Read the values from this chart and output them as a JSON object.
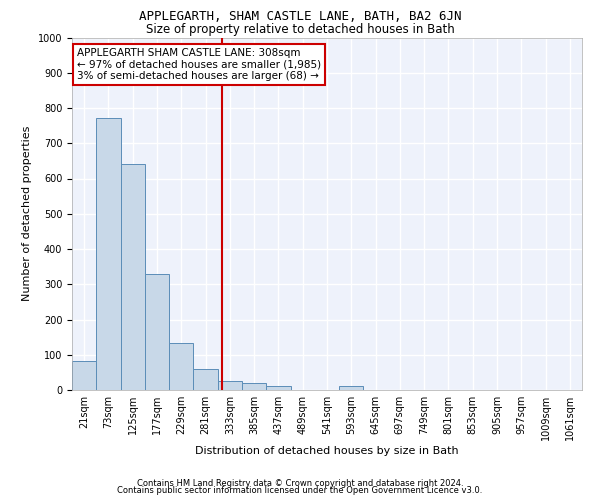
{
  "title": "APPLEGARTH, SHAM CASTLE LANE, BATH, BA2 6JN",
  "subtitle": "Size of property relative to detached houses in Bath",
  "xlabel": "Distribution of detached houses by size in Bath",
  "ylabel": "Number of detached properties",
  "footer_line1": "Contains HM Land Registry data © Crown copyright and database right 2024.",
  "footer_line2": "Contains public sector information licensed under the Open Government Licence v3.0.",
  "annotation_line1": "APPLEGARTH SHAM CASTLE LANE: 308sqm",
  "annotation_line2": "← 97% of detached houses are smaller (1,985)",
  "annotation_line3": "3% of semi-detached houses are larger (68) →",
  "bar_color": "#c8d8e8",
  "bar_edge_color": "#5b8db8",
  "ref_line_color": "#cc0000",
  "annotation_box_color": "#cc0000",
  "background_color": "#eef2fb",
  "grid_color": "#ffffff",
  "categories": [
    "21sqm",
    "73sqm",
    "125sqm",
    "177sqm",
    "229sqm",
    "281sqm",
    "333sqm",
    "385sqm",
    "437sqm",
    "489sqm",
    "541sqm",
    "593sqm",
    "645sqm",
    "697sqm",
    "749sqm",
    "801sqm",
    "853sqm",
    "905sqm",
    "957sqm",
    "1009sqm",
    "1061sqm"
  ],
  "bin_starts": [
    0,
    1,
    2,
    3,
    4,
    5,
    6,
    7,
    8,
    9,
    10,
    11,
    12,
    13,
    14,
    15,
    16,
    17,
    18,
    19,
    20
  ],
  "values": [
    82,
    773,
    642,
    328,
    133,
    60,
    25,
    20,
    12,
    0,
    0,
    10,
    0,
    0,
    0,
    0,
    0,
    0,
    0,
    0,
    0
  ],
  "ref_bin": 5.69,
  "ylim": [
    0,
    1000
  ],
  "yticks": [
    0,
    100,
    200,
    300,
    400,
    500,
    600,
    700,
    800,
    900,
    1000
  ],
  "title_fontsize": 9,
  "subtitle_fontsize": 8.5,
  "ylabel_fontsize": 8,
  "xlabel_fontsize": 8,
  "tick_fontsize": 7,
  "footer_fontsize": 6,
  "annotation_fontsize": 7.5
}
